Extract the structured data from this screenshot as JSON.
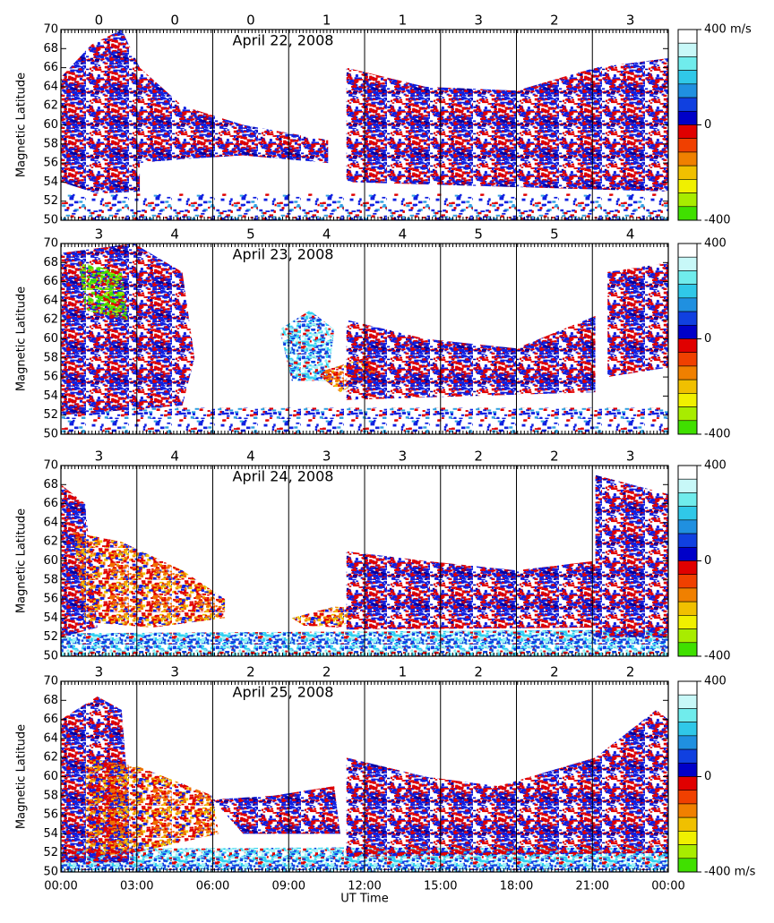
{
  "chart_data": [
    {
      "type": "scatter",
      "title": "April 22, 2008",
      "ylabel": "Magnetic Latitude",
      "kp": [
        0,
        0,
        0,
        1,
        1,
        3,
        2,
        3
      ],
      "xlim": [
        0,
        24
      ],
      "xticks": [
        0,
        3,
        6,
        9,
        12,
        15,
        18,
        21,
        24
      ],
      "ylim": [
        50,
        70
      ],
      "yticks": [
        50,
        52,
        54,
        56,
        58,
        60,
        62,
        64,
        66,
        68,
        70
      ],
      "colorbar": {
        "lim": [
          -400,
          400
        ],
        "ticks": [
          {
            "value": 400,
            "label": "400 m/s"
          },
          0,
          -400
        ],
        "colors": [
          "#ffffff",
          "#c8f8f8",
          "#70ecec",
          "#30c8e8",
          "#2090e0",
          "#1040e0",
          "#0000c8",
          "#e00000",
          "#f04000",
          "#f08000",
          "#f0c000",
          "#f0f000",
          "#a8ec00",
          "#40e000"
        ]
      }
    },
    {
      "type": "scatter",
      "title": "April 23, 2008",
      "ylabel": "Magnetic Latitude",
      "kp": [
        3,
        4,
        5,
        4,
        4,
        5,
        5,
        4
      ],
      "xlim": [
        0,
        24
      ],
      "xticks": [
        0,
        3,
        6,
        9,
        12,
        15,
        18,
        21,
        24
      ],
      "ylim": [
        50,
        70
      ],
      "yticks": [
        50,
        52,
        54,
        56,
        58,
        60,
        62,
        64,
        66,
        68,
        70
      ],
      "colorbar": {
        "lim": [
          -400,
          400
        ],
        "ticks": [
          400,
          0,
          -400
        ],
        "colors": [
          "#ffffff",
          "#c8f8f8",
          "#70ecec",
          "#30c8e8",
          "#2090e0",
          "#1040e0",
          "#0000c8",
          "#e00000",
          "#f04000",
          "#f08000",
          "#f0c000",
          "#f0f000",
          "#a8ec00",
          "#40e000"
        ]
      }
    },
    {
      "type": "scatter",
      "title": "April 24, 2008",
      "ylabel": "Magnetic Latitude",
      "kp": [
        3,
        4,
        4,
        3,
        3,
        2,
        2,
        3
      ],
      "xlim": [
        0,
        24
      ],
      "xticks": [
        0,
        3,
        6,
        9,
        12,
        15,
        18,
        21,
        24
      ],
      "ylim": [
        50,
        70
      ],
      "yticks": [
        50,
        52,
        54,
        56,
        58,
        60,
        62,
        64,
        66,
        68,
        70
      ],
      "colorbar": {
        "lim": [
          -400,
          400
        ],
        "ticks": [
          400,
          0,
          -400
        ],
        "colors": [
          "#ffffff",
          "#c8f8f8",
          "#70ecec",
          "#30c8e8",
          "#2090e0",
          "#1040e0",
          "#0000c8",
          "#e00000",
          "#f04000",
          "#f08000",
          "#f0c000",
          "#f0f000",
          "#a8ec00",
          "#40e000"
        ]
      }
    },
    {
      "type": "scatter",
      "title": "April 25, 2008",
      "ylabel": "Magnetic Latitude",
      "xlabel": "UT Time",
      "kp": [
        3,
        3,
        2,
        2,
        1,
        2,
        2,
        2
      ],
      "xlim": [
        0,
        24
      ],
      "xticks": [
        {
          "value": 0,
          "label": "00:00"
        },
        {
          "value": 3,
          "label": "03:00"
        },
        {
          "value": 6,
          "label": "06:00"
        },
        {
          "value": 9,
          "label": "09:00"
        },
        {
          "value": 12,
          "label": "12:00"
        },
        {
          "value": 15,
          "label": "15:00"
        },
        {
          "value": 18,
          "label": "18:00"
        },
        {
          "value": 21,
          "label": "21:00"
        },
        {
          "value": 24,
          "label": "00:00"
        }
      ],
      "ylim": [
        50,
        70
      ],
      "yticks": [
        50,
        52,
        54,
        56,
        58,
        60,
        62,
        64,
        66,
        68,
        70
      ],
      "colorbar": {
        "lim": [
          -400,
          400
        ],
        "ticks": [
          400,
          0,
          {
            "value": -400,
            "label": "-400 m/s"
          }
        ],
        "colors": [
          "#ffffff",
          "#c8f8f8",
          "#70ecec",
          "#30c8e8",
          "#2090e0",
          "#1040e0",
          "#0000c8",
          "#e00000",
          "#f04000",
          "#f08000",
          "#f0c000",
          "#f0f000",
          "#a8ec00",
          "#40e000"
        ]
      }
    }
  ]
}
